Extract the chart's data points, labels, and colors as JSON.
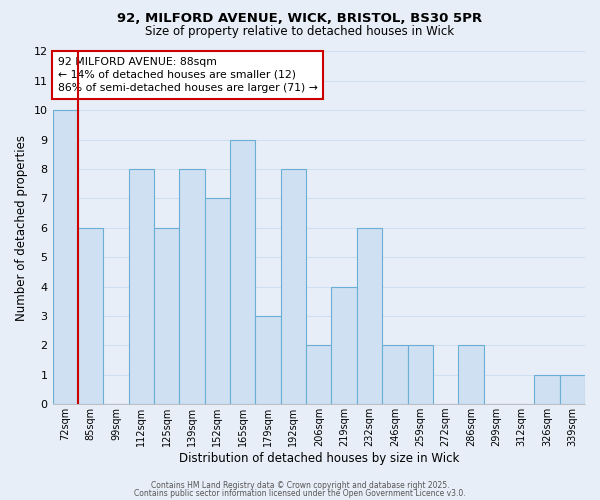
{
  "title1": "92, MILFORD AVENUE, WICK, BRISTOL, BS30 5PR",
  "title2": "Size of property relative to detached houses in Wick",
  "xlabel": "Distribution of detached houses by size in Wick",
  "ylabel": "Number of detached properties",
  "bin_labels": [
    "72sqm",
    "85sqm",
    "99sqm",
    "112sqm",
    "125sqm",
    "139sqm",
    "152sqm",
    "165sqm",
    "179sqm",
    "192sqm",
    "206sqm",
    "219sqm",
    "232sqm",
    "246sqm",
    "259sqm",
    "272sqm",
    "286sqm",
    "299sqm",
    "312sqm",
    "326sqm",
    "339sqm"
  ],
  "bar_values": [
    10,
    6,
    0,
    8,
    6,
    8,
    7,
    9,
    3,
    8,
    2,
    4,
    6,
    2,
    2,
    0,
    2,
    0,
    0,
    1,
    1
  ],
  "ylim": [
    0,
    12
  ],
  "yticks": [
    0,
    1,
    2,
    3,
    4,
    5,
    6,
    7,
    8,
    9,
    10,
    11,
    12
  ],
  "bar_color": "#cfe0f3",
  "bar_edge_color": "#6aaed6",
  "grid_color": "#d0dff0",
  "reference_line_color": "#cc0000",
  "annotation_box_text": "92 MILFORD AVENUE: 88sqm\n← 14% of detached houses are smaller (12)\n86% of semi-detached houses are larger (71) →",
  "annotation_box_color": "#cc0000",
  "footer1": "Contains HM Land Registry data © Crown copyright and database right 2025.",
  "footer2": "Contains public sector information licensed under the Open Government Licence v3.0.",
  "background_color": "#e8eef8"
}
